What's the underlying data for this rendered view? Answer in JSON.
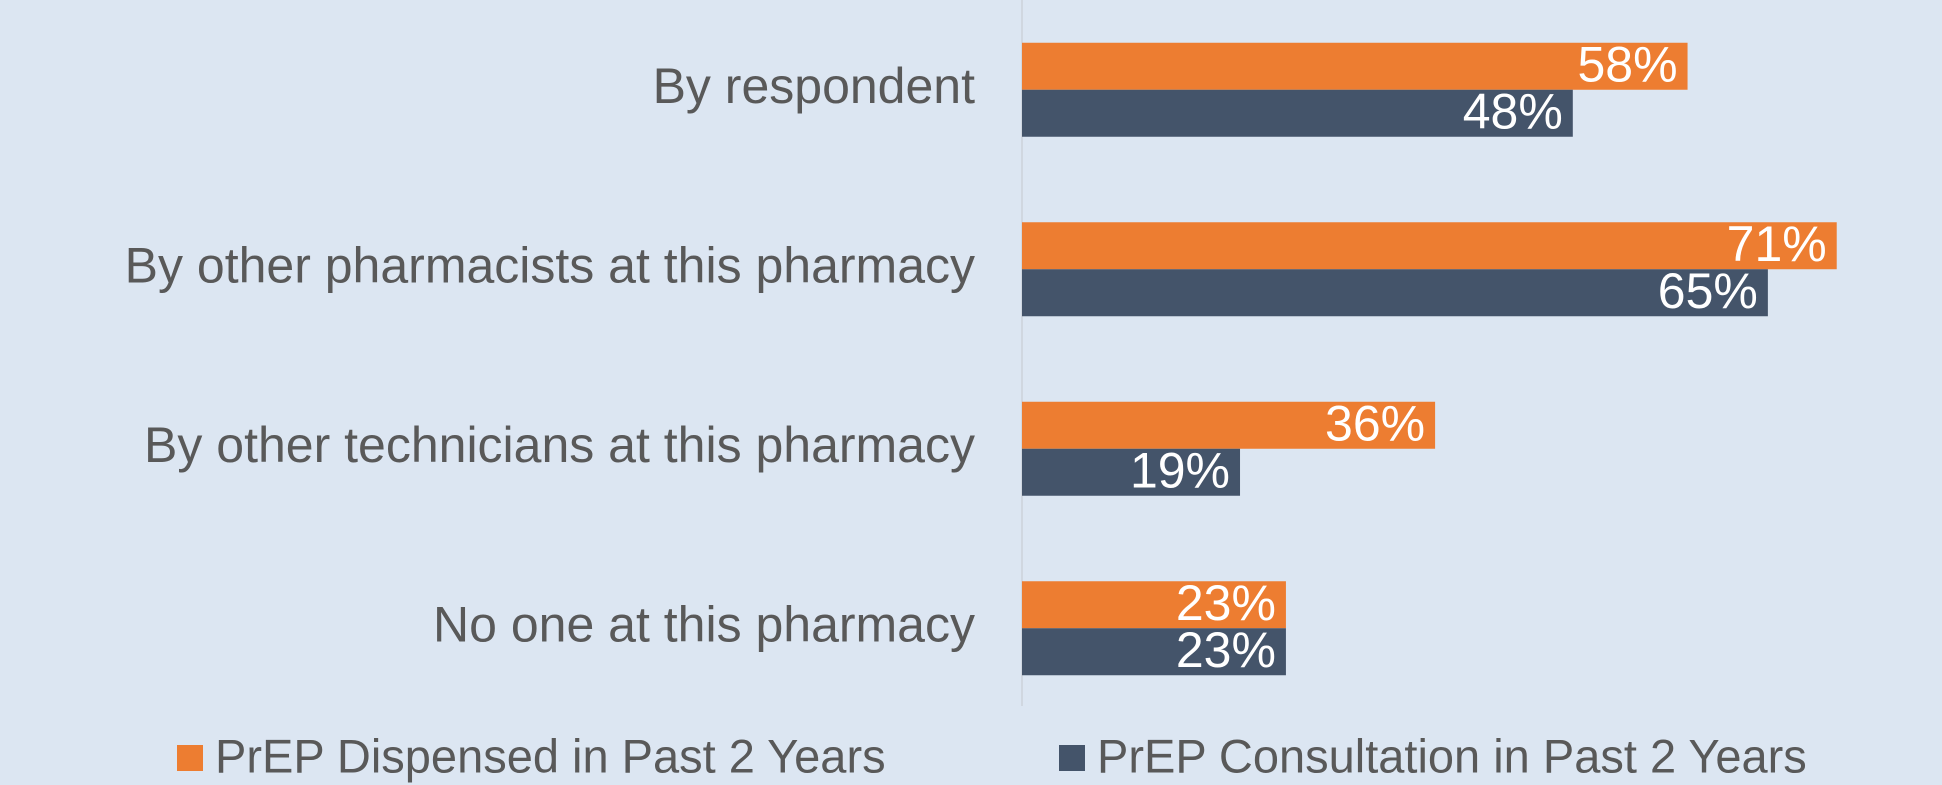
{
  "chart_data": {
    "type": "hbar",
    "categories": [
      "By respondent",
      "By other pharmacists at this pharmacy",
      "By other technicians at this pharmacy",
      "No one at this pharmacy"
    ],
    "series": [
      {
        "name": "PrEP Dispensed in Past 2 Years",
        "color": "#ed7d31",
        "values": [
          58,
          71,
          36,
          23
        ],
        "value_labels": [
          "58%",
          "71%",
          "36%",
          "23%"
        ]
      },
      {
        "name": "PrEP Consultation in Past 2 Years",
        "color": "#44546a",
        "values": [
          48,
          65,
          19,
          23
        ],
        "value_labels": [
          "48%",
          "65%",
          "19%",
          "23%"
        ]
      }
    ],
    "xlim": [
      0,
      80
    ],
    "legend": "bottom"
  }
}
